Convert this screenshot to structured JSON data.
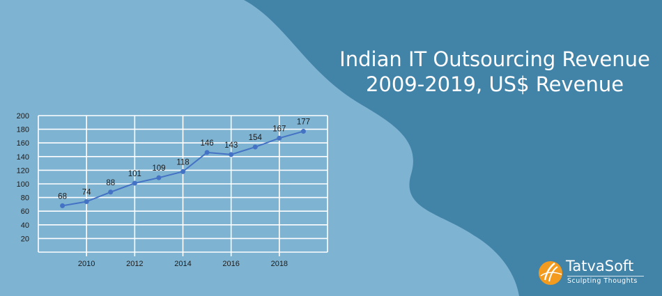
{
  "colors": {
    "background_light": "#7fb3d2",
    "background_dark": "#4283a8",
    "line": "#4472c4",
    "grid": "#ffffff",
    "text": "#1a1a1a",
    "logo_orange": "#f39b1f"
  },
  "title": {
    "line1": "Indian IT Outsourcing Revenue",
    "line2": "2009-2019, US$ Revenue"
  },
  "logo": {
    "name": "TatvaSoft",
    "tagline": "Sculpting Thoughts",
    "icon": "tatvasoft-logo-icon"
  },
  "chart_data": {
    "type": "line",
    "x": [
      2009,
      2010,
      2011,
      2012,
      2013,
      2014,
      2015,
      2016,
      2017,
      2018,
      2019
    ],
    "values": [
      68,
      74,
      88,
      101,
      109,
      118,
      146,
      143,
      154,
      167,
      177
    ],
    "data_labels": [
      "68",
      "74",
      "88",
      "101",
      "109",
      "118",
      "146",
      "143",
      "154",
      "167",
      "177"
    ],
    "x_ticks": [
      "2010",
      "2012",
      "2014",
      "2016",
      "2018"
    ],
    "y_ticks": [
      "20",
      "40",
      "60",
      "80",
      "100",
      "120",
      "140",
      "160",
      "180",
      "200"
    ],
    "xlim": [
      2008,
      2020
    ],
    "ylim": [
      0,
      200
    ],
    "grid": true,
    "legend": "none"
  }
}
